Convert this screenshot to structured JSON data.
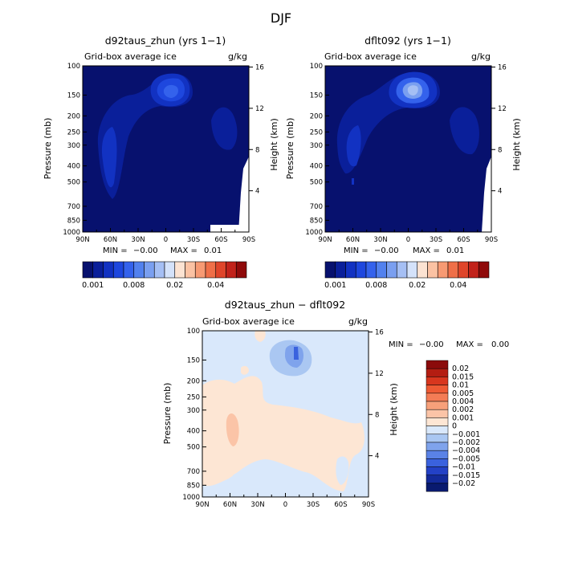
{
  "figure_title": "DJF",
  "levels_abs": [
    0.001,
    0.002,
    0.004,
    0.006,
    0.008,
    0.01,
    0.012,
    0.015,
    0.02,
    0.025,
    0.03,
    0.035,
    0.04,
    0.045,
    0.05
  ],
  "abs_colors": [
    "#07116e",
    "#0a1f9a",
    "#1232c2",
    "#1e47de",
    "#3462ec",
    "#5281ee",
    "#7a9ff0",
    "#a5bff4",
    "#d4e2fa",
    "#fce3d2",
    "#fbc2a3",
    "#f79a73",
    "#ef6f48",
    "#df452a",
    "#c1221a",
    "#8f0a0a"
  ],
  "abs_colorbar_labels": [
    {
      "index": 0,
      "text": "0.001"
    },
    {
      "index": 4,
      "text": "0.008"
    },
    {
      "index": 8,
      "text": "0.02"
    },
    {
      "index": 12,
      "text": "0.04"
    }
  ],
  "diff_levels": [
    "0.02",
    "0.015",
    "0.01",
    "0.005",
    "0.004",
    "0.002",
    "0.001",
    "0",
    "−0.001",
    "−0.002",
    "−0.004",
    "−0.005",
    "−0.01",
    "−0.015",
    "−0.02"
  ],
  "diff_colors": [
    "#8b0b0b",
    "#b41d12",
    "#d8361e",
    "#ee5a34",
    "#f47c55",
    "#f7a07a",
    "#fbc4a7",
    "#fde6d4",
    "#d9e8fb",
    "#aac7f2",
    "#7fa3ec",
    "#5a82e6",
    "#3a62de",
    "#2341c6",
    "#132a9a",
    "#091a6f"
  ],
  "panels": [
    {
      "id": "left",
      "title": "d92taus_zhun (yrs 1−1)",
      "subtitle": "Grid-box average ice",
      "units": "g/kg",
      "min_label": "MIN =",
      "min_value": "−0.00",
      "max_label": "MAX =",
      "max_value": "0.01"
    },
    {
      "id": "right",
      "title": "dflt092 (yrs 1−1)",
      "subtitle": "Grid-box average ice",
      "units": "g/kg",
      "min_label": "MIN =",
      "min_value": "−0.00",
      "max_label": "MAX =",
      "max_value": "0.01"
    },
    {
      "id": "diff",
      "title": "d92taus_zhun − dflt092",
      "subtitle": "Grid-box average ice",
      "units": "g/kg",
      "min_label": "MIN =",
      "min_value": "−0.00",
      "max_label": "MAX =",
      "max_value": "0.00"
    }
  ],
  "chart_data": {
    "type": "heatmap",
    "title": "DJF",
    "variable": "Grid-box average ice",
    "units": "g/kg",
    "ylabel_left": "Pressure (mb)",
    "ylabel_right": "Height (km)",
    "x_ticks": [
      "90N",
      "60N",
      "30N",
      "0",
      "30S",
      "60S",
      "90S"
    ],
    "x_values": [
      90,
      60,
      30,
      0,
      -30,
      -60,
      -90
    ],
    "pressure_ticks": [
      100,
      150,
      200,
      250,
      300,
      400,
      500,
      700,
      850,
      1000
    ],
    "height_ticks_km": [
      16,
      12,
      8,
      4
    ],
    "ylim": [
      1000,
      100
    ],
    "fields": [
      {
        "name": "d92taus_zhun (yrs 1-1)",
        "min": -0.0,
        "max": 0.01,
        "regions": [
          {
            "lat": 0,
            "p": 240,
            "value": 0.008
          },
          {
            "lat": 0,
            "p": 240,
            "value": 0.006
          },
          {
            "lat": 0,
            "p": 250,
            "value": 0.004
          },
          {
            "lat": 0,
            "p": 270,
            "value": 0.002
          },
          {
            "lat": 65,
            "p": 550,
            "value": 0.002
          },
          {
            "lat": 45,
            "p": 350,
            "value": 0.002
          },
          {
            "lat": -65,
            "p": 400,
            "value": 0.002
          }
        ]
      },
      {
        "name": "dflt092 (yrs 1-1)",
        "min": -0.0,
        "max": 0.01,
        "regions": [
          {
            "lat": -5,
            "p": 240,
            "value": 0.012
          },
          {
            "lat": -5,
            "p": 240,
            "value": 0.01
          },
          {
            "lat": -5,
            "p": 250,
            "value": 0.008
          },
          {
            "lat": 0,
            "p": 260,
            "value": 0.004
          },
          {
            "lat": 0,
            "p": 280,
            "value": 0.002
          },
          {
            "lat": 60,
            "p": 500,
            "value": 0.002
          },
          {
            "lat": -65,
            "p": 450,
            "value": 0.002
          }
        ]
      },
      {
        "name": "d92taus_zhun - dflt092",
        "min": -0.0,
        "max": 0.0,
        "regions": [
          {
            "lat": -10,
            "p": 220,
            "value": -0.005
          },
          {
            "lat": -10,
            "p": 230,
            "value": -0.002
          },
          {
            "lat": -5,
            "p": 240,
            "value": -0.001
          },
          {
            "lat": 60,
            "p": 660,
            "value": 0.002
          },
          {
            "lat": 20,
            "p": 620,
            "value": 0.001
          },
          {
            "lat": 40,
            "p": 900,
            "value": -0.001
          }
        ]
      }
    ]
  }
}
